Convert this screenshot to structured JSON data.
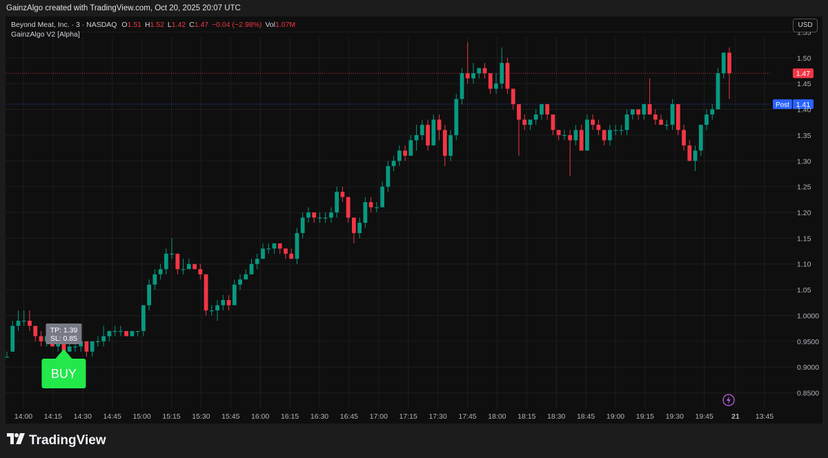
{
  "header": {
    "caption": "GainzAlgo created with TradingView.com, Oct 20, 2025 20:07 UTC"
  },
  "legend": {
    "symbol": "Beyond Meat, Inc. · 3 · NASDAQ",
    "o_label": "O",
    "o_value": "1.51",
    "h_label": "H",
    "h_value": "1.52",
    "l_label": "L",
    "l_value": "1.42",
    "c_label": "C",
    "c_value": "1.47",
    "change": "−0.04 (−2.98%)",
    "vol_label": "Vol",
    "vol_value": "1.07M",
    "indicator": "GainzAlgo V2 [Alpha]"
  },
  "currency_button": "USD",
  "footer": {
    "brand": "TradingView"
  },
  "colors": {
    "up": "#089981",
    "down": "#f23645",
    "background": "#0f0f0f",
    "buy": "#23e84a",
    "post": "#2962ff"
  },
  "chart_data": {
    "type": "candlestick",
    "title": "",
    "ylim": [
      0.82,
      1.58
    ],
    "y_ticks": [
      "1.55",
      "1.50",
      "1.45",
      "1.40",
      "1.35",
      "1.30",
      "1.25",
      "1.20",
      "1.15",
      "1.10",
      "1.05",
      "1.0000",
      "0.9500",
      "0.9000",
      "0.8500"
    ],
    "x_ticks": [
      "14:00",
      "14:15",
      "14:30",
      "14:45",
      "15:00",
      "15:15",
      "15:30",
      "15:45",
      "16:00",
      "16:15",
      "16:30",
      "16:45",
      "17:00",
      "17:15",
      "17:30",
      "17:45",
      "18:00",
      "18:15",
      "18:30",
      "18:45",
      "19:00",
      "19:15",
      "19:30",
      "19:45",
      "21",
      "13:45"
    ],
    "price_markers": [
      {
        "label": "",
        "value": 1.47,
        "color": "#f23645"
      },
      {
        "label": "Post",
        "value": 1.41,
        "color": "#2962ff"
      }
    ],
    "signals": [
      {
        "type": "BUY",
        "candle_index": 10,
        "tp": "TP: 1.39",
        "sl": "SL: 0.85"
      }
    ],
    "candles": [
      [
        0.92,
        0.93,
        0.92,
        0.92
      ],
      [
        0.93,
        0.99,
        0.93,
        0.98
      ],
      [
        0.98,
        1.01,
        0.97,
        0.99
      ],
      [
        0.99,
        1.01,
        0.98,
        0.99
      ],
      [
        0.99,
        1.01,
        0.97,
        0.98
      ],
      [
        0.98,
        0.98,
        0.95,
        0.96
      ],
      [
        0.96,
        0.97,
        0.94,
        0.95
      ],
      [
        0.95,
        0.97,
        0.94,
        0.96
      ],
      [
        0.96,
        0.97,
        0.94,
        0.94
      ],
      [
        0.94,
        0.96,
        0.93,
        0.95
      ],
      [
        0.95,
        0.95,
        0.92,
        0.93
      ],
      [
        0.93,
        0.95,
        0.93,
        0.94
      ],
      [
        0.94,
        0.95,
        0.93,
        0.94
      ],
      [
        0.94,
        0.96,
        0.93,
        0.95
      ],
      [
        0.95,
        0.95,
        0.92,
        0.93
      ],
      [
        0.93,
        0.95,
        0.92,
        0.95
      ],
      [
        0.95,
        0.96,
        0.94,
        0.95
      ],
      [
        0.95,
        0.98,
        0.94,
        0.96
      ],
      [
        0.96,
        0.97,
        0.95,
        0.97
      ],
      [
        0.97,
        0.98,
        0.96,
        0.97
      ],
      [
        0.97,
        0.98,
        0.96,
        0.97
      ],
      [
        0.97,
        0.97,
        0.96,
        0.96
      ],
      [
        0.96,
        0.97,
        0.96,
        0.97
      ],
      [
        0.97,
        0.97,
        0.96,
        0.97
      ],
      [
        0.97,
        1.02,
        0.96,
        1.02
      ],
      [
        1.02,
        1.07,
        1.01,
        1.06
      ],
      [
        1.06,
        1.09,
        1.05,
        1.08
      ],
      [
        1.08,
        1.1,
        1.07,
        1.09
      ],
      [
        1.09,
        1.13,
        1.08,
        1.12
      ],
      [
        1.12,
        1.15,
        1.11,
        1.12
      ],
      [
        1.12,
        1.12,
        1.08,
        1.09
      ],
      [
        1.09,
        1.11,
        1.08,
        1.09
      ],
      [
        1.09,
        1.11,
        1.09,
        1.1
      ],
      [
        1.1,
        1.1,
        1.09,
        1.09
      ],
      [
        1.09,
        1.1,
        1.07,
        1.08
      ],
      [
        1.08,
        1.08,
        1.0,
        1.01
      ],
      [
        1.01,
        1.02,
        1.0,
        1.01
      ],
      [
        1.01,
        1.03,
        0.99,
        1.02
      ],
      [
        1.02,
        1.04,
        1.01,
        1.03
      ],
      [
        1.03,
        1.04,
        1.01,
        1.02
      ],
      [
        1.02,
        1.07,
        1.02,
        1.06
      ],
      [
        1.06,
        1.08,
        1.05,
        1.07
      ],
      [
        1.07,
        1.09,
        1.07,
        1.08
      ],
      [
        1.08,
        1.11,
        1.08,
        1.1
      ],
      [
        1.1,
        1.12,
        1.09,
        1.11
      ],
      [
        1.11,
        1.14,
        1.11,
        1.13
      ],
      [
        1.13,
        1.14,
        1.12,
        1.13
      ],
      [
        1.13,
        1.14,
        1.12,
        1.14
      ],
      [
        1.14,
        1.14,
        1.12,
        1.13
      ],
      [
        1.13,
        1.13,
        1.11,
        1.12
      ],
      [
        1.12,
        1.13,
        1.11,
        1.11
      ],
      [
        1.11,
        1.17,
        1.1,
        1.16
      ],
      [
        1.16,
        1.2,
        1.15,
        1.19
      ],
      [
        1.19,
        1.21,
        1.18,
        1.2
      ],
      [
        1.2,
        1.2,
        1.18,
        1.19
      ],
      [
        1.19,
        1.2,
        1.18,
        1.19
      ],
      [
        1.19,
        1.2,
        1.18,
        1.19
      ],
      [
        1.19,
        1.21,
        1.18,
        1.2
      ],
      [
        1.2,
        1.25,
        1.19,
        1.24
      ],
      [
        1.24,
        1.25,
        1.22,
        1.23
      ],
      [
        1.23,
        1.23,
        1.18,
        1.19
      ],
      [
        1.19,
        1.19,
        1.14,
        1.16
      ],
      [
        1.16,
        1.19,
        1.15,
        1.18
      ],
      [
        1.18,
        1.23,
        1.17,
        1.22
      ],
      [
        1.22,
        1.23,
        1.2,
        1.21
      ],
      [
        1.21,
        1.22,
        1.2,
        1.21
      ],
      [
        1.21,
        1.26,
        1.21,
        1.25
      ],
      [
        1.25,
        1.3,
        1.24,
        1.29
      ],
      [
        1.29,
        1.31,
        1.28,
        1.3
      ],
      [
        1.3,
        1.33,
        1.29,
        1.32
      ],
      [
        1.32,
        1.33,
        1.3,
        1.31
      ],
      [
        1.31,
        1.35,
        1.31,
        1.34
      ],
      [
        1.34,
        1.37,
        1.32,
        1.35
      ],
      [
        1.35,
        1.38,
        1.34,
        1.37
      ],
      [
        1.37,
        1.38,
        1.32,
        1.33
      ],
      [
        1.33,
        1.39,
        1.33,
        1.38
      ],
      [
        1.38,
        1.39,
        1.34,
        1.36
      ],
      [
        1.36,
        1.37,
        1.29,
        1.31
      ],
      [
        1.31,
        1.36,
        1.3,
        1.35
      ],
      [
        1.35,
        1.43,
        1.34,
        1.42
      ],
      [
        1.42,
        1.48,
        1.41,
        1.47
      ],
      [
        1.47,
        1.53,
        1.45,
        1.46
      ],
      [
        1.46,
        1.49,
        1.45,
        1.47
      ],
      [
        1.47,
        1.48,
        1.46,
        1.48
      ],
      [
        1.48,
        1.49,
        1.46,
        1.47
      ],
      [
        1.47,
        1.47,
        1.43,
        1.44
      ],
      [
        1.44,
        1.47,
        1.43,
        1.45
      ],
      [
        1.45,
        1.52,
        1.44,
        1.49
      ],
      [
        1.49,
        1.5,
        1.43,
        1.44
      ],
      [
        1.44,
        1.44,
        1.4,
        1.41
      ],
      [
        1.41,
        1.41,
        1.31,
        1.38
      ],
      [
        1.38,
        1.39,
        1.36,
        1.37
      ],
      [
        1.37,
        1.38,
        1.36,
        1.38
      ],
      [
        1.38,
        1.4,
        1.37,
        1.39
      ],
      [
        1.39,
        1.41,
        1.38,
        1.41
      ],
      [
        1.41,
        1.41,
        1.38,
        1.39
      ],
      [
        1.39,
        1.39,
        1.35,
        1.36
      ],
      [
        1.36,
        1.36,
        1.34,
        1.35
      ],
      [
        1.35,
        1.36,
        1.34,
        1.35
      ],
      [
        1.35,
        1.36,
        1.27,
        1.34
      ],
      [
        1.34,
        1.37,
        1.33,
        1.36
      ],
      [
        1.36,
        1.37,
        1.32,
        1.32
      ],
      [
        1.32,
        1.39,
        1.32,
        1.38
      ],
      [
        1.38,
        1.39,
        1.36,
        1.37
      ],
      [
        1.37,
        1.38,
        1.35,
        1.36
      ],
      [
        1.36,
        1.36,
        1.33,
        1.34
      ],
      [
        1.34,
        1.37,
        1.33,
        1.36
      ],
      [
        1.36,
        1.37,
        1.35,
        1.36
      ],
      [
        1.36,
        1.37,
        1.35,
        1.36
      ],
      [
        1.36,
        1.4,
        1.35,
        1.39
      ],
      [
        1.39,
        1.4,
        1.38,
        1.4
      ],
      [
        1.4,
        1.4,
        1.38,
        1.39
      ],
      [
        1.39,
        1.41,
        1.38,
        1.41
      ],
      [
        1.41,
        1.46,
        1.39,
        1.39
      ],
      [
        1.39,
        1.4,
        1.37,
        1.38
      ],
      [
        1.38,
        1.39,
        1.37,
        1.37
      ],
      [
        1.37,
        1.38,
        1.36,
        1.37
      ],
      [
        1.37,
        1.42,
        1.36,
        1.41
      ],
      [
        1.41,
        1.41,
        1.35,
        1.36
      ],
      [
        1.36,
        1.37,
        1.32,
        1.33
      ],
      [
        1.33,
        1.34,
        1.3,
        1.3
      ],
      [
        1.3,
        1.33,
        1.28,
        1.32
      ],
      [
        1.32,
        1.37,
        1.31,
        1.37
      ],
      [
        1.37,
        1.4,
        1.36,
        1.39
      ],
      [
        1.39,
        1.41,
        1.38,
        1.4
      ],
      [
        1.4,
        1.48,
        1.4,
        1.47
      ],
      [
        1.47,
        1.51,
        1.46,
        1.51
      ],
      [
        1.51,
        1.52,
        1.42,
        1.47
      ]
    ]
  }
}
